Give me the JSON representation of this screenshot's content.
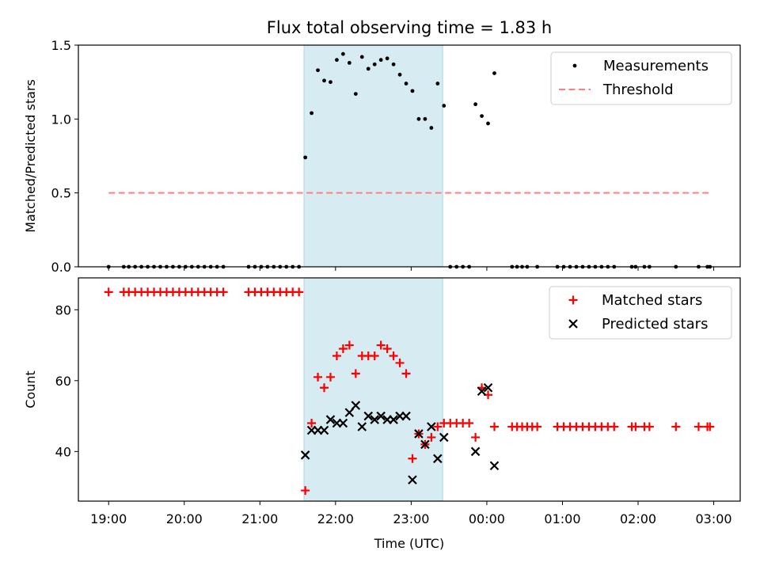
{
  "chart_data": [
    {
      "type": "scatter",
      "title": "Flux total observing time = 1.83 h",
      "xlabel": "",
      "ylabel": "Matched/Predicted stars",
      "xlim": [
        "18:36",
        "03:21"
      ],
      "ylim": [
        0,
        1.5
      ],
      "yticks": [
        "0.0",
        "0.5",
        "1.0",
        "1.5"
      ],
      "legend_position": "top-right",
      "highlight_span": [
        "21:35",
        "23:25"
      ],
      "series": [
        {
          "name": "Measurements",
          "marker": "dot",
          "color": "#000000",
          "points": [
            [
              "19:00",
              0.0
            ],
            [
              "19:12",
              0.0
            ],
            [
              "19:16",
              0.0
            ],
            [
              "19:21",
              0.0
            ],
            [
              "19:26",
              0.0
            ],
            [
              "19:31",
              0.0
            ],
            [
              "19:36",
              0.0
            ],
            [
              "19:41",
              0.0
            ],
            [
              "19:46",
              0.0
            ],
            [
              "19:51",
              0.0
            ],
            [
              "19:56",
              0.0
            ],
            [
              "20:01",
              0.0
            ],
            [
              "20:06",
              0.0
            ],
            [
              "20:11",
              0.0
            ],
            [
              "20:16",
              0.0
            ],
            [
              "20:21",
              0.0
            ],
            [
              "20:26",
              0.0
            ],
            [
              "20:31",
              0.0
            ],
            [
              "20:51",
              0.0
            ],
            [
              "20:56",
              0.0
            ],
            [
              "21:01",
              0.0
            ],
            [
              "21:06",
              0.0
            ],
            [
              "21:11",
              0.0
            ],
            [
              "21:16",
              0.0
            ],
            [
              "21:21",
              0.0
            ],
            [
              "21:26",
              0.0
            ],
            [
              "21:31",
              0.0
            ],
            [
              "21:36",
              0.74
            ],
            [
              "21:41",
              1.04
            ],
            [
              "21:46",
              1.33
            ],
            [
              "21:51",
              1.26
            ],
            [
              "21:56",
              1.25
            ],
            [
              "22:01",
              1.4
            ],
            [
              "22:06",
              1.44
            ],
            [
              "22:11",
              1.38
            ],
            [
              "22:16",
              1.17
            ],
            [
              "22:21",
              1.42
            ],
            [
              "22:26",
              1.34
            ],
            [
              "22:31",
              1.37
            ],
            [
              "22:36",
              1.4
            ],
            [
              "22:41",
              1.41
            ],
            [
              "22:46",
              1.37
            ],
            [
              "22:51",
              1.3
            ],
            [
              "22:56",
              1.24
            ],
            [
              "23:01",
              1.19
            ],
            [
              "23:06",
              1.0
            ],
            [
              "23:11",
              1.0
            ],
            [
              "23:16",
              0.94
            ],
            [
              "23:21",
              1.24
            ],
            [
              "23:26",
              1.09
            ],
            [
              "23:31",
              0.0
            ],
            [
              "23:36",
              0.0
            ],
            [
              "23:41",
              0.0
            ],
            [
              "23:46",
              0.0
            ],
            [
              "23:51",
              1.1
            ],
            [
              "23:56",
              1.02
            ],
            [
              "00:01",
              0.97
            ],
            [
              "00:06",
              1.31
            ],
            [
              "00:20",
              0.0
            ],
            [
              "00:24",
              0.0
            ],
            [
              "00:28",
              0.0
            ],
            [
              "00:32",
              0.0
            ],
            [
              "00:40",
              0.0
            ],
            [
              "00:56",
              0.0
            ],
            [
              "01:01",
              0.0
            ],
            [
              "01:06",
              0.0
            ],
            [
              "01:11",
              0.0
            ],
            [
              "01:16",
              0.0
            ],
            [
              "01:21",
              0.0
            ],
            [
              "01:26",
              0.0
            ],
            [
              "01:31",
              0.0
            ],
            [
              "01:36",
              0.0
            ],
            [
              "01:41",
              0.0
            ],
            [
              "01:55",
              0.0
            ],
            [
              "01:58",
              0.0
            ],
            [
              "02:05",
              0.0
            ],
            [
              "02:09",
              0.0
            ],
            [
              "02:30",
              0.0
            ],
            [
              "02:48",
              0.0
            ],
            [
              "02:55",
              0.0
            ],
            [
              "02:57",
              0.0
            ]
          ]
        },
        {
          "name": "Threshold",
          "marker": "dashed-line",
          "color": "#ff7f7f",
          "points": [
            [
              "19:00",
              0.5
            ],
            [
              "02:57",
              0.5
            ]
          ]
        }
      ]
    },
    {
      "type": "scatter",
      "title": "",
      "xlabel": "Time (UTC)",
      "ylabel": "Count",
      "xlim": [
        "18:36",
        "03:21"
      ],
      "ylim": [
        26,
        89
      ],
      "yticks": [
        "40",
        "60",
        "80"
      ],
      "xticks": [
        "19:00",
        "20:00",
        "21:00",
        "22:00",
        "23:00",
        "00:00",
        "01:00",
        "02:00",
        "03:00"
      ],
      "legend_position": "top-right",
      "highlight_span": [
        "21:35",
        "23:25"
      ],
      "series": [
        {
          "name": "Matched stars",
          "marker": "plus",
          "color": "#ff0000",
          "points": [
            [
              "19:00",
              85
            ],
            [
              "19:12",
              85
            ],
            [
              "19:16",
              85
            ],
            [
              "19:21",
              85
            ],
            [
              "19:26",
              85
            ],
            [
              "19:31",
              85
            ],
            [
              "19:36",
              85
            ],
            [
              "19:41",
              85
            ],
            [
              "19:46",
              85
            ],
            [
              "19:51",
              85
            ],
            [
              "19:56",
              85
            ],
            [
              "20:01",
              85
            ],
            [
              "20:06",
              85
            ],
            [
              "20:11",
              85
            ],
            [
              "20:16",
              85
            ],
            [
              "20:21",
              85
            ],
            [
              "20:26",
              85
            ],
            [
              "20:31",
              85
            ],
            [
              "20:51",
              85
            ],
            [
              "20:56",
              85
            ],
            [
              "21:01",
              85
            ],
            [
              "21:06",
              85
            ],
            [
              "21:11",
              85
            ],
            [
              "21:16",
              85
            ],
            [
              "21:21",
              85
            ],
            [
              "21:26",
              85
            ],
            [
              "21:31",
              85
            ],
            [
              "21:36",
              29
            ],
            [
              "21:41",
              48
            ],
            [
              "21:46",
              61
            ],
            [
              "21:51",
              58
            ],
            [
              "21:56",
              61
            ],
            [
              "22:01",
              67
            ],
            [
              "22:06",
              69
            ],
            [
              "22:11",
              70
            ],
            [
              "22:16",
              62
            ],
            [
              "22:21",
              67
            ],
            [
              "22:26",
              67
            ],
            [
              "22:31",
              67
            ],
            [
              "22:36",
              70
            ],
            [
              "22:41",
              69
            ],
            [
              "22:46",
              67
            ],
            [
              "22:51",
              65
            ],
            [
              "22:56",
              62
            ],
            [
              "23:01",
              38
            ],
            [
              "23:06",
              45
            ],
            [
              "23:11",
              42
            ],
            [
              "23:16",
              44
            ],
            [
              "23:21",
              47
            ],
            [
              "23:26",
              48
            ],
            [
              "23:31",
              48
            ],
            [
              "23:36",
              48
            ],
            [
              "23:41",
              48
            ],
            [
              "23:46",
              48
            ],
            [
              "23:51",
              44
            ],
            [
              "23:56",
              58
            ],
            [
              "00:01",
              56
            ],
            [
              "00:06",
              47
            ],
            [
              "00:20",
              47
            ],
            [
              "00:24",
              47
            ],
            [
              "00:28",
              47
            ],
            [
              "00:32",
              47
            ],
            [
              "00:36",
              47
            ],
            [
              "00:40",
              47
            ],
            [
              "00:56",
              47
            ],
            [
              "01:01",
              47
            ],
            [
              "01:06",
              47
            ],
            [
              "01:11",
              47
            ],
            [
              "01:16",
              47
            ],
            [
              "01:21",
              47
            ],
            [
              "01:26",
              47
            ],
            [
              "01:31",
              47
            ],
            [
              "01:36",
              47
            ],
            [
              "01:41",
              47
            ],
            [
              "01:55",
              47
            ],
            [
              "01:58",
              47
            ],
            [
              "02:05",
              47
            ],
            [
              "02:09",
              47
            ],
            [
              "02:30",
              47
            ],
            [
              "02:48",
              47
            ],
            [
              "02:55",
              47
            ],
            [
              "02:57",
              47
            ]
          ]
        },
        {
          "name": "Predicted stars",
          "marker": "x",
          "color": "#000000",
          "points": [
            [
              "21:36",
              39
            ],
            [
              "21:41",
              46
            ],
            [
              "21:46",
              46
            ],
            [
              "21:51",
              46
            ],
            [
              "21:56",
              49
            ],
            [
              "22:01",
              48
            ],
            [
              "22:06",
              48
            ],
            [
              "22:11",
              51
            ],
            [
              "22:16",
              53
            ],
            [
              "22:21",
              47
            ],
            [
              "22:26",
              50
            ],
            [
              "22:31",
              49
            ],
            [
              "22:36",
              50
            ],
            [
              "22:41",
              49
            ],
            [
              "22:46",
              49
            ],
            [
              "22:51",
              50
            ],
            [
              "22:56",
              50
            ],
            [
              "23:01",
              32
            ],
            [
              "23:06",
              45
            ],
            [
              "23:11",
              42
            ],
            [
              "23:16",
              47
            ],
            [
              "23:21",
              38
            ],
            [
              "23:26",
              44
            ],
            [
              "23:51",
              40
            ],
            [
              "23:56",
              57
            ],
            [
              "00:01",
              58
            ],
            [
              "00:06",
              36
            ]
          ]
        }
      ]
    }
  ]
}
